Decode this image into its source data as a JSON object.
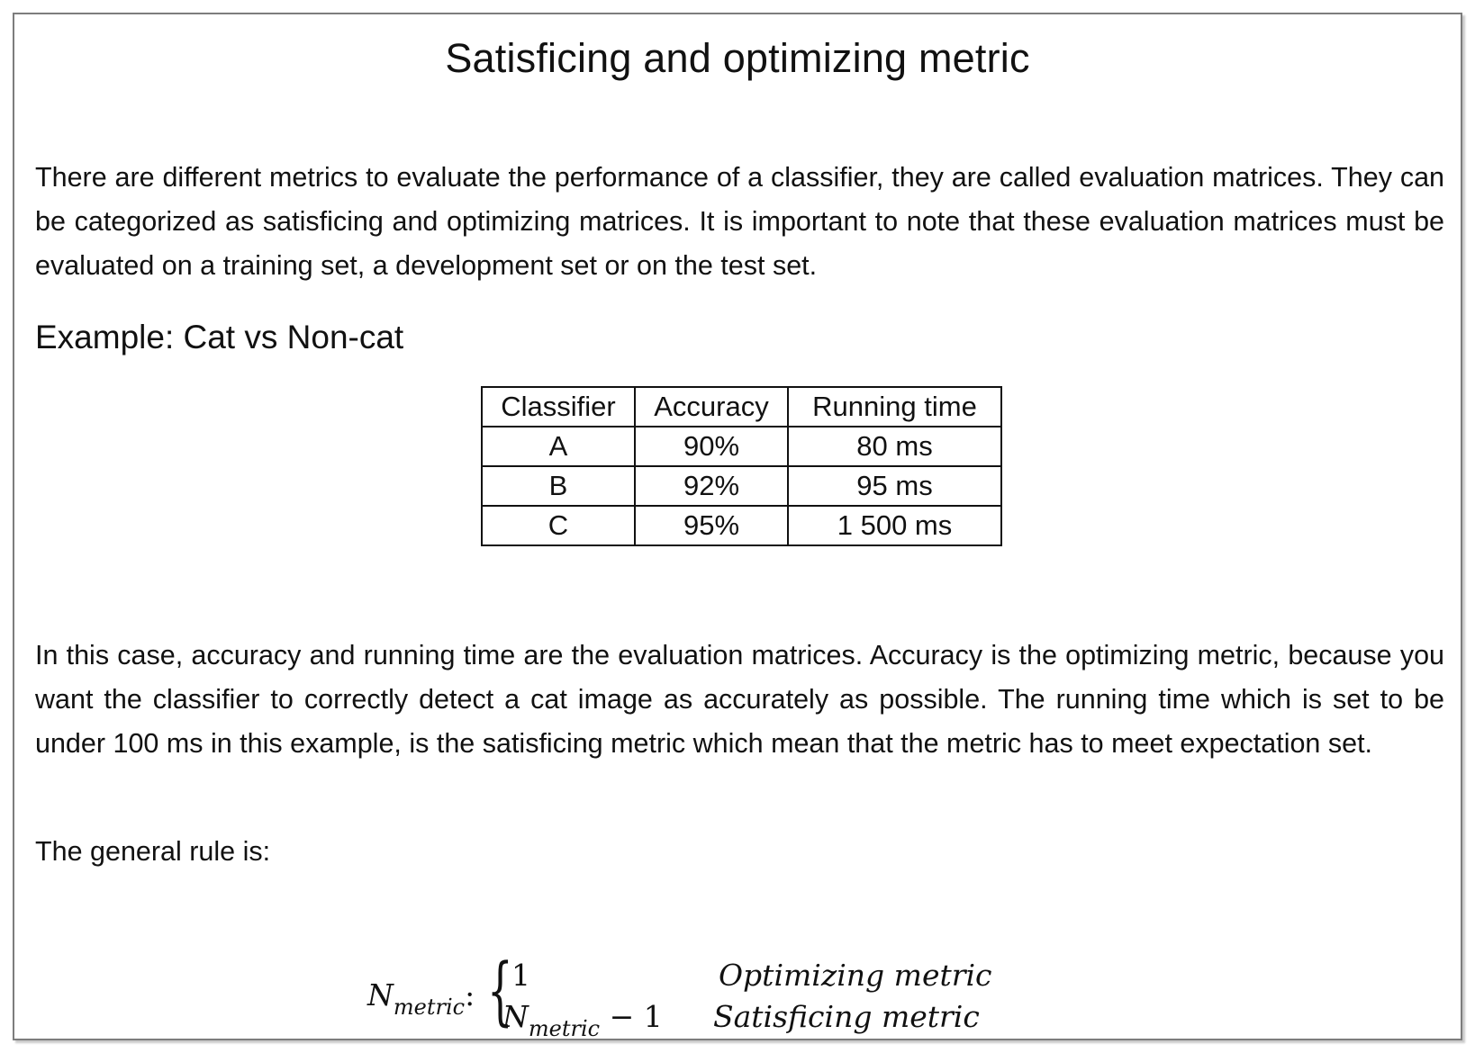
{
  "title": "Satisficing and optimizing metric",
  "intro_paragraph": "There are different metrics to evaluate the performance of a classifier, they are called evaluation matrices. They can be categorized as satisficing and optimizing matrices. It is important to note that these evaluation matrices must be evaluated on a training set, a development set or on the test set.",
  "example_heading": "Example: Cat vs Non-cat",
  "table": {
    "headers": [
      "Classifier",
      "Accuracy",
      "Running time"
    ],
    "rows": [
      [
        "A",
        "90%",
        "80 ms"
      ],
      [
        "B",
        "92%",
        "95 ms"
      ],
      [
        "C",
        "95%",
        "1 500 ms"
      ]
    ]
  },
  "explanation_paragraph": "In this case, accuracy and running time are the evaluation matrices. Accuracy is the optimizing metric, because you want the classifier to correctly detect a cat image as accurately as possible. The running time which is set to be under 100 ms in this example, is the satisficing metric which mean that the metric has to meet expectation set.",
  "rule_intro": "The general rule is:",
  "formula": {
    "lhs_symbol": "N",
    "lhs_subscript": "metric",
    "colon": ":",
    "case1_value": "1",
    "case1_label": "Optimizing metric",
    "case2_symbol": "N",
    "case2_subscript": "metric",
    "case2_suffix": " − 1",
    "case2_label": "Satisficing metric"
  }
}
